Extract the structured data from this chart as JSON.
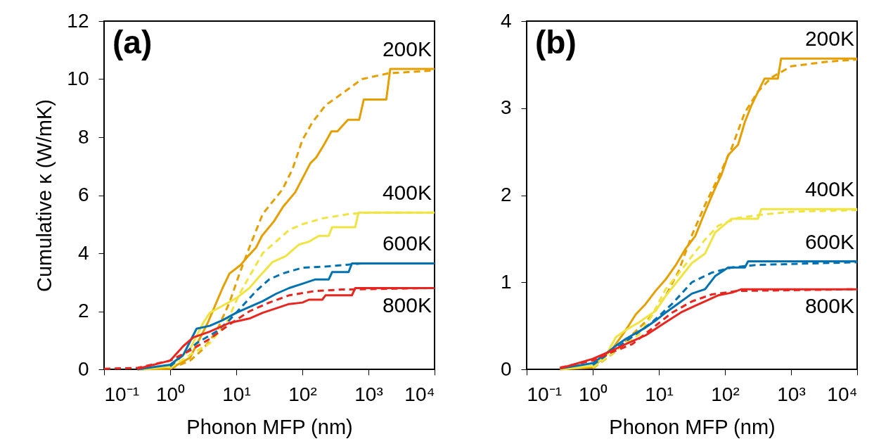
{
  "chart_data": [
    {
      "type": "line",
      "annotations": [
        "(a)"
      ],
      "xlabel": "Phonon MFP (nm)",
      "ylabel": "Cumulative κ (W/mK)",
      "log": "x",
      "xlim": [
        0.1,
        10000
      ],
      "ylim": [
        0,
        12
      ],
      "xticks": [
        {
          "value": 0.1,
          "label": "10⁻¹"
        },
        {
          "value": 1,
          "label": "10⁰"
        },
        {
          "value": 10,
          "label": "10¹"
        },
        {
          "value": 100,
          "label": "10²"
        },
        {
          "value": 1000,
          "label": "10³"
        },
        {
          "value": 10000,
          "label": "10⁴"
        }
      ],
      "yticks": [
        0,
        2,
        4,
        6,
        8,
        10,
        12
      ],
      "marker": "none",
      "series": [
        {
          "name": "200K",
          "color": "#e69f00",
          "line_style": "solid",
          "x": [
            0.32,
            1,
            2,
            3.7,
            6.2,
            7.9,
            11.7,
            15.1,
            20,
            24.5,
            37.2,
            51,
            78,
            107,
            132,
            162,
            214,
            275,
            339,
            490,
            724,
            851,
            1862,
            2138,
            10000
          ],
          "values": [
            0,
            0.02,
            0.4,
            1.6,
            2.8,
            3.3,
            3.6,
            3.9,
            4.2,
            4.6,
            5.1,
            5.6,
            6.1,
            6.7,
            7.1,
            7.3,
            7.75,
            8.2,
            8.2,
            8.6,
            8.6,
            9.3,
            9.3,
            10.35,
            10.35
          ]
        },
        {
          "color": "#e69f00",
          "line_style": "dashed",
          "x": [
            1,
            2,
            3.16,
            5,
            7.9,
            11.2,
            15.8,
            25.1,
            50,
            71,
            100,
            141,
            224,
            398,
            794,
            1995,
            10000
          ],
          "values": [
            0.02,
            0.3,
            0.7,
            1.3,
            2.3,
            3.3,
            4.2,
            5.35,
            6.2,
            6.9,
            7.9,
            8.5,
            9.1,
            9.5,
            10,
            10.2,
            10.3
          ]
        },
        {
          "name": "400K",
          "color": "#f0e442",
          "line_style": "solid",
          "x": [
            0.4,
            1,
            2,
            3.16,
            3.98,
            6.3,
            10,
            15.8,
            22.4,
            35.5,
            56,
            89,
            126,
            178,
            251,
            282,
            631,
            708,
            10000
          ],
          "values": [
            0,
            0.1,
            0.7,
            1.6,
            1.95,
            2.2,
            2.45,
            2.8,
            3.2,
            3.7,
            3.9,
            4.3,
            4.4,
            4.6,
            4.6,
            4.9,
            4.9,
            5.4,
            5.4
          ]
        },
        {
          "color": "#f0e442",
          "line_style": "dashed",
          "x": [
            1,
            2,
            3.98,
            7.1,
            11.2,
            15.8,
            25.1,
            39.8,
            63,
            100,
            200,
            501,
            1000,
            10000
          ],
          "values": [
            0.05,
            0.5,
            0.9,
            1.6,
            2.6,
            3.2,
            4,
            4.4,
            4.8,
            5,
            5.2,
            5.35,
            5.4,
            5.4
          ]
        },
        {
          "name": "600K",
          "color": "#0072b2",
          "line_style": "solid",
          "x": [
            0.32,
            1,
            1.58,
            2.51,
            3.98,
            6.3,
            10,
            15.8,
            25.1,
            39.8,
            63,
            100,
            158,
            251,
            282,
            501,
            562,
            10000
          ],
          "values": [
            0,
            0.16,
            0.5,
            1.4,
            1.5,
            1.7,
            1.95,
            2.15,
            2.35,
            2.6,
            2.8,
            2.95,
            3.1,
            3.1,
            3.35,
            3.35,
            3.65,
            3.65
          ]
        },
        {
          "color": "#0072b2",
          "line_style": "dashed",
          "x": [
            1,
            2.51,
            5,
            7.9,
            12.6,
            20,
            31.6,
            50,
            100,
            251,
            794,
            10000
          ],
          "values": [
            0.1,
            0.9,
            1.3,
            1.7,
            2.2,
            2.7,
            3.1,
            3.3,
            3.5,
            3.55,
            3.65,
            3.65
          ]
        },
        {
          "name": "800K",
          "color": "#e8261f",
          "line_style": "solid",
          "x": [
            0.32,
            1,
            1.58,
            2.24,
            3.98,
            7.9,
            15.8,
            25.1,
            39.8,
            63,
            100,
            126,
            200,
            224,
            562,
            631,
            10000
          ],
          "values": [
            0.02,
            0.3,
            0.8,
            1.1,
            1.3,
            1.6,
            1.75,
            1.95,
            2.1,
            2.25,
            2.3,
            2.4,
            2.4,
            2.55,
            2.55,
            2.8,
            2.8
          ]
        },
        {
          "color": "#e8261f",
          "line_style": "dashed",
          "x": [
            0.1,
            0.32,
            1,
            2,
            3.98,
            7.9,
            15.8,
            31.6,
            63,
            158,
            398,
            10000
          ],
          "values": [
            0.02,
            0.05,
            0.3,
            0.65,
            1.05,
            1.55,
            2,
            2.3,
            2.55,
            2.7,
            2.75,
            2.8
          ]
        }
      ]
    },
    {
      "type": "line",
      "annotations": [
        "(b)"
      ],
      "xlabel": "Phonon MFP (nm)",
      "log": "x",
      "xlim": [
        0.1,
        10000
      ],
      "ylim": [
        0,
        4
      ],
      "xticks": [
        {
          "value": 0.1,
          "label": "10⁻¹"
        },
        {
          "value": 1,
          "label": "10⁰"
        },
        {
          "value": 10,
          "label": "10¹"
        },
        {
          "value": 100,
          "label": "10²"
        },
        {
          "value": 1000,
          "label": "10³"
        },
        {
          "value": 10000,
          "label": "10⁴"
        }
      ],
      "yticks": [
        0,
        1,
        2,
        3,
        4
      ],
      "marker": "none",
      "series": [
        {
          "name": "200K",
          "color": "#e69f00",
          "line_style": "solid",
          "x": [
            0.32,
            1,
            2,
            3.16,
            4.47,
            6.3,
            8.9,
            12.6,
            17.8,
            25.1,
            35.5,
            50,
            71,
            89,
            112,
            158,
            200,
            251,
            282,
            398,
            631,
            708,
            10000
          ],
          "values": [
            0,
            0.02,
            0.24,
            0.45,
            0.63,
            0.75,
            0.9,
            1.03,
            1.19,
            1.38,
            1.53,
            1.81,
            2.08,
            2.24,
            2.46,
            2.58,
            2.84,
            3.03,
            3.11,
            3.34,
            3.34,
            3.57,
            3.57
          ]
        },
        {
          "color": "#e69f00",
          "line_style": "dashed",
          "x": [
            1,
            2,
            3.98,
            7.9,
            12.6,
            20,
            31.6,
            50,
            79,
            126,
            200,
            316,
            501,
            1000,
            3162,
            10000
          ],
          "values": [
            0.01,
            0.18,
            0.4,
            0.62,
            0.84,
            1.13,
            1.54,
            1.89,
            2.2,
            2.54,
            2.95,
            3.19,
            3.35,
            3.48,
            3.53,
            3.56
          ]
        },
        {
          "name": "400K",
          "color": "#f0e442",
          "line_style": "solid",
          "x": [
            0.32,
            1,
            1.58,
            2.24,
            3.16,
            5,
            8.9,
            12.6,
            20,
            31.6,
            50,
            71,
            126,
            200,
            316,
            355,
            10000
          ],
          "values": [
            0,
            0.04,
            0.16,
            0.37,
            0.45,
            0.54,
            0.67,
            0.84,
            1.03,
            1.22,
            1.33,
            1.57,
            1.73,
            1.73,
            1.73,
            1.84,
            1.84
          ]
        },
        {
          "color": "#f0e442",
          "line_style": "dashed",
          "x": [
            1,
            2.51,
            5,
            7.9,
            12.6,
            20,
            31.6,
            50,
            79,
            158,
            398,
            1000,
            10000
          ],
          "values": [
            0.02,
            0.24,
            0.4,
            0.62,
            0.92,
            1.1,
            1.3,
            1.49,
            1.65,
            1.74,
            1.78,
            1.81,
            1.83
          ]
        },
        {
          "name": "600K",
          "color": "#0072b2",
          "line_style": "solid",
          "x": [
            0.32,
            1,
            1.58,
            2.24,
            3.16,
            6.3,
            8.9,
            12.6,
            20,
            31.6,
            50,
            71,
            112,
            200,
            224,
            10000
          ],
          "values": [
            0.01,
            0.07,
            0.18,
            0.27,
            0.35,
            0.48,
            0.56,
            0.65,
            0.76,
            0.87,
            0.92,
            1.07,
            1.17,
            1.17,
            1.24,
            1.24
          ]
        },
        {
          "color": "#0072b2",
          "line_style": "dashed",
          "x": [
            1,
            3.16,
            7.9,
            15.8,
            31.6,
            63,
            126,
            316,
            10000
          ],
          "values": [
            0.05,
            0.32,
            0.54,
            0.75,
            1,
            1.11,
            1.17,
            1.2,
            1.23
          ]
        },
        {
          "name": "800K",
          "color": "#e8261f",
          "line_style": "solid",
          "x": [
            0.32,
            1,
            2,
            3.16,
            6.3,
            12.6,
            22.4,
            35.5,
            50,
            79,
            126,
            178,
            10000
          ],
          "values": [
            0.01,
            0.12,
            0.22,
            0.29,
            0.39,
            0.54,
            0.66,
            0.73,
            0.78,
            0.85,
            0.88,
            0.92,
            0.92
          ]
        },
        {
          "color": "#e8261f",
          "line_style": "dashed",
          "x": [
            0.32,
            1,
            2,
            3.98,
            7.9,
            15.8,
            31.6,
            63,
            158,
            10000
          ],
          "values": [
            0.02,
            0.1,
            0.2,
            0.29,
            0.47,
            0.65,
            0.78,
            0.86,
            0.9,
            0.92
          ]
        }
      ]
    }
  ]
}
